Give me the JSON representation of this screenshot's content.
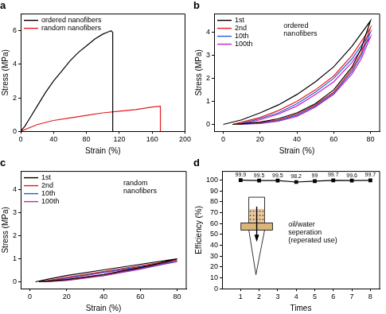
{
  "chart_data": [
    {
      "type": "line",
      "title": "a",
      "x_label": "Strain (%)",
      "y_label": "Stress (MPa)",
      "xlim": [
        0,
        200
      ],
      "xticks": [
        0,
        40,
        80,
        120,
        160,
        200
      ],
      "ylim": [
        0,
        7
      ],
      "yticks": [
        0,
        2,
        4,
        6
      ],
      "grid": false,
      "legend": "upper left",
      "series": [
        {
          "name": "ordered nanofibers",
          "color": "#000000",
          "x": [
            0,
            5,
            10,
            20,
            30,
            40,
            50,
            60,
            70,
            80,
            90,
            100,
            105,
            110,
            112,
            112
          ],
          "values": [
            0,
            0.3,
            0.7,
            1.5,
            2.3,
            3.0,
            3.6,
            4.2,
            4.7,
            5.1,
            5.5,
            5.8,
            5.9,
            6.0,
            5.9,
            0
          ]
        },
        {
          "name": "random nanofibers",
          "color": "#e41a1c",
          "x": [
            0,
            20,
            40,
            60,
            80,
            100,
            120,
            140,
            160,
            170,
            170
          ],
          "values": [
            0,
            0.4,
            0.65,
            0.8,
            0.95,
            1.1,
            1.2,
            1.3,
            1.45,
            1.5,
            0
          ]
        }
      ]
    },
    {
      "type": "line",
      "title": "b",
      "x_label": "Strain (%)",
      "y_label": "Stress (MPa)",
      "xlim": [
        -5,
        85
      ],
      "xticks": [
        0,
        20,
        40,
        60,
        80
      ],
      "ylim": [
        -0.3,
        4.8
      ],
      "yticks": [
        0,
        1,
        2,
        3,
        4
      ],
      "grid": false,
      "legend": "upper left",
      "annotation": [
        "ordered",
        "nanofibers"
      ],
      "series": [
        {
          "name": "1st",
          "color": "#000000",
          "x": [
            0,
            10,
            20,
            30,
            40,
            50,
            60,
            70,
            80,
            75,
            70,
            60,
            50,
            40,
            30,
            20,
            10,
            5
          ],
          "values": [
            0,
            0.2,
            0.5,
            0.85,
            1.3,
            1.85,
            2.5,
            3.4,
            4.5,
            3.3,
            2.5,
            1.5,
            0.9,
            0.5,
            0.25,
            0.1,
            0.03,
            0
          ]
        },
        {
          "name": "2nd",
          "color": "#e41a1c",
          "x": [
            5,
            10,
            20,
            30,
            40,
            50,
            60,
            70,
            80,
            75,
            70,
            60,
            50,
            40,
            30,
            20,
            10,
            7
          ],
          "values": [
            0,
            0.1,
            0.3,
            0.6,
            1.0,
            1.5,
            2.1,
            3.0,
            4.2,
            3.1,
            2.4,
            1.4,
            0.85,
            0.45,
            0.2,
            0.08,
            0.02,
            0
          ]
        },
        {
          "name": "10th",
          "color": "#1f5fd0",
          "x": [
            7,
            10,
            20,
            30,
            40,
            50,
            60,
            70,
            80,
            75,
            70,
            60,
            50,
            40,
            30,
            20,
            10,
            8
          ],
          "values": [
            0,
            0.05,
            0.25,
            0.5,
            0.9,
            1.4,
            2.0,
            2.85,
            4.0,
            3.0,
            2.3,
            1.35,
            0.8,
            0.4,
            0.17,
            0.06,
            0.01,
            0
          ]
        },
        {
          "name": "100th",
          "color": "#c71fc7",
          "x": [
            8,
            10,
            20,
            30,
            40,
            50,
            60,
            70,
            80,
            75,
            70,
            60,
            50,
            40,
            30,
            20,
            10,
            9
          ],
          "values": [
            0,
            0.03,
            0.2,
            0.45,
            0.8,
            1.3,
            1.85,
            2.7,
            3.8,
            2.85,
            2.2,
            1.3,
            0.75,
            0.35,
            0.14,
            0.04,
            0.01,
            0
          ]
        }
      ]
    },
    {
      "type": "line",
      "title": "c",
      "x_label": "Strain (%)",
      "y_label": "Stress (MPa)",
      "xlim": [
        -5,
        85
      ],
      "xticks": [
        0,
        20,
        40,
        60,
        80
      ],
      "ylim": [
        -0.3,
        4.8
      ],
      "yticks": [
        0,
        1,
        2,
        3,
        4
      ],
      "grid": false,
      "legend": "upper left",
      "annotation": [
        "random",
        "nanofibers"
      ],
      "series": [
        {
          "name": "1st",
          "color": "#000000",
          "x": [
            3,
            10,
            20,
            40,
            60,
            80,
            70,
            60,
            40,
            20,
            5
          ],
          "values": [
            0,
            0.12,
            0.27,
            0.52,
            0.76,
            1.0,
            0.8,
            0.62,
            0.32,
            0.1,
            0
          ]
        },
        {
          "name": "2nd",
          "color": "#e41a1c",
          "x": [
            5,
            10,
            20,
            40,
            60,
            80,
            70,
            60,
            40,
            20,
            7
          ],
          "values": [
            0,
            0.06,
            0.2,
            0.45,
            0.7,
            0.95,
            0.77,
            0.6,
            0.3,
            0.08,
            0
          ]
        },
        {
          "name": "10th",
          "color": "#1f5fd0",
          "x": [
            7,
            10,
            20,
            40,
            60,
            80,
            70,
            60,
            40,
            20,
            8
          ],
          "values": [
            0,
            0.04,
            0.17,
            0.42,
            0.66,
            0.9,
            0.74,
            0.57,
            0.28,
            0.07,
            0
          ]
        },
        {
          "name": "100th",
          "color": "#c71fc7",
          "x": [
            8,
            10,
            20,
            40,
            60,
            80,
            70,
            60,
            40,
            20,
            9
          ],
          "values": [
            0,
            0.03,
            0.15,
            0.4,
            0.63,
            0.88,
            0.72,
            0.55,
            0.26,
            0.06,
            0
          ]
        }
      ]
    },
    {
      "type": "line",
      "title": "d",
      "x_label": "Times",
      "y_label": "Efficiency (%)",
      "xlim": [
        0,
        8.5
      ],
      "xticks": [
        1,
        2,
        3,
        4,
        5,
        6,
        7,
        8
      ],
      "ylim": [
        0,
        108
      ],
      "yticks": [
        0,
        10,
        20,
        30,
        40,
        50,
        60,
        70,
        80,
        90,
        100
      ],
      "grid": false,
      "data_labels": true,
      "annotation": [
        "oil/water",
        "seperation",
        "(reperated use)"
      ],
      "series": [
        {
          "color": "#000000",
          "marker": "square",
          "x": [
            1,
            2,
            3,
            4,
            5,
            6,
            7,
            8
          ],
          "values": [
            99.9,
            99.5,
            99.5,
            98.2,
            99,
            99.7,
            99.6,
            99.7
          ]
        }
      ]
    }
  ]
}
